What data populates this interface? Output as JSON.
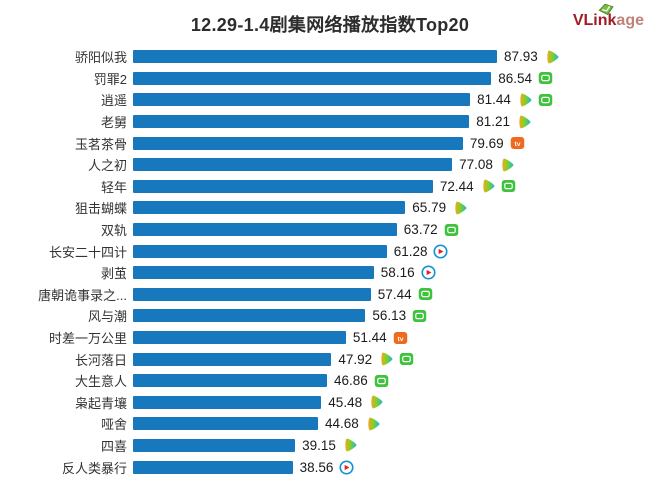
{
  "header": {
    "title": "12.29-1.4剧集网络播放指数Top20",
    "logo": {
      "bold": "VLink",
      "light": "age"
    }
  },
  "colors": {
    "bar": "#1878be",
    "title_text": "#2d2d2d",
    "label_text": "#333333",
    "logo_bold": "#9f1d24",
    "logo_light": "#bf837b",
    "logo_leaf": "#7cbb45",
    "iqiyi_green": "#3fc23c",
    "mango_orange": "#ee6a1e",
    "youku_ring": "#1293d2",
    "youku_arrow": "#d9272e"
  },
  "chart_data": {
    "type": "bar",
    "orientation": "horizontal",
    "title": "12.29-1.4剧集网络播放指数Top20",
    "xlabel": "",
    "ylabel": "",
    "xlim": [
      0,
      90
    ],
    "grid": false,
    "legend": "none",
    "value_labels": true,
    "categories": [
      "骄阳似我",
      "罚罪2",
      "逍遥",
      "老舅",
      "玉茗茶骨",
      "人之初",
      "轻年",
      "狙击蝴蝶",
      "双轨",
      "长安二十四计",
      "剥茧",
      "唐朝诡事录之...",
      "风与潮",
      "时差一万公里",
      "长河落日",
      "大生意人",
      "枭起青壤",
      "哑舍",
      "四喜",
      "反人类暴行"
    ],
    "values": [
      87.93,
      86.54,
      81.44,
      81.21,
      79.69,
      77.08,
      72.44,
      65.79,
      63.72,
      61.28,
      58.16,
      57.44,
      56.13,
      51.44,
      47.92,
      46.86,
      45.48,
      44.68,
      39.15,
      38.56
    ],
    "platforms": [
      [
        "tencent-video"
      ],
      [
        "iqiyi"
      ],
      [
        "tencent-video",
        "iqiyi"
      ],
      [
        "tencent-video"
      ],
      [
        "mango-tv"
      ],
      [
        "tencent-video"
      ],
      [
        "tencent-video",
        "iqiyi"
      ],
      [
        "tencent-video"
      ],
      [
        "iqiyi"
      ],
      [
        "youku"
      ],
      [
        "youku"
      ],
      [
        "iqiyi"
      ],
      [
        "iqiyi"
      ],
      [
        "mango-tv"
      ],
      [
        "tencent-video",
        "iqiyi"
      ],
      [
        "iqiyi"
      ],
      [
        "tencent-video"
      ],
      [
        "tencent-video"
      ],
      [
        "tencent-video"
      ],
      [
        "youku"
      ]
    ]
  }
}
